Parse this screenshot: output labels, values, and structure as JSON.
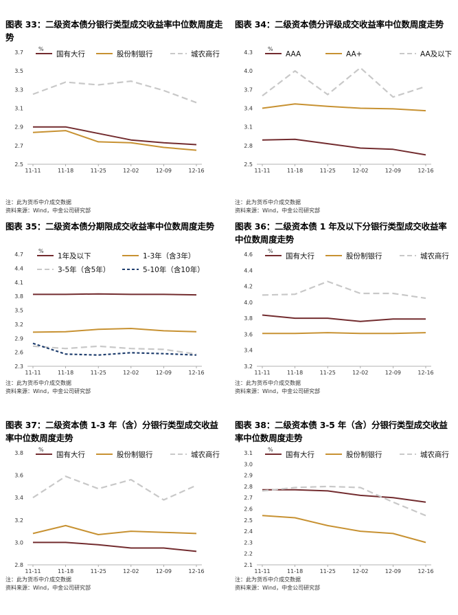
{
  "notes": {
    "note": "注：此为货币中介成交数据",
    "source": "资料来源：Wind，中金公司研究部"
  },
  "colors": {
    "dark_red": "#722b2e",
    "gold": "#c79131",
    "gray": "#c8c8c8",
    "navy": "#1f3e6e"
  },
  "chart_data": [
    {
      "type": "line",
      "title": "图表 33：二级资本债分银行类型成交收益率中位数周度走势",
      "ylabel": "%",
      "ylim": [
        2.5,
        3.7
      ],
      "yticks": [
        "2.5",
        "2.7",
        "2.9",
        "3.1",
        "3.3",
        "3.5",
        "3.7"
      ],
      "categories": [
        "11-11",
        "11-18",
        "11-25",
        "12-02",
        "12-09",
        "12-16"
      ],
      "series": [
        {
          "name": "国有大行",
          "color": "#722b2e",
          "dash": "solid",
          "values": [
            2.9,
            2.9,
            2.83,
            2.76,
            2.73,
            2.71
          ]
        },
        {
          "name": "股份制银行",
          "color": "#c79131",
          "dash": "solid",
          "values": [
            2.84,
            2.86,
            2.74,
            2.73,
            2.68,
            2.65
          ]
        },
        {
          "name": "城农商行",
          "color": "#c8c8c8",
          "dash": "dash",
          "values": [
            3.25,
            3.38,
            3.35,
            3.39,
            3.29,
            3.16
          ]
        }
      ]
    },
    {
      "type": "line",
      "title": "图表 34：二级资本债分评级成交收益率中位数周度走势",
      "ylabel": "%",
      "ylim": [
        2.5,
        4.3
      ],
      "yticks": [
        "2.5",
        "2.8",
        "3.1",
        "3.4",
        "3.7",
        "4.0",
        "4.3"
      ],
      "categories": [
        "11-11",
        "11-18",
        "11-25",
        "12-02",
        "12-09",
        "12-16"
      ],
      "series": [
        {
          "name": "AAA",
          "color": "#722b2e",
          "dash": "solid",
          "values": [
            2.89,
            2.9,
            2.83,
            2.76,
            2.74,
            2.65
          ]
        },
        {
          "name": "AA+",
          "color": "#c79131",
          "dash": "solid",
          "values": [
            3.4,
            3.47,
            3.43,
            3.4,
            3.39,
            3.36
          ]
        },
        {
          "name": "AA及以下",
          "color": "#c8c8c8",
          "dash": "dash",
          "values": [
            3.6,
            4.0,
            3.62,
            4.05,
            3.58,
            3.75
          ]
        }
      ]
    },
    {
      "type": "line",
      "title": "图表 35：二级资本债分期限成交收益率中位数周度走势",
      "ylabel": "%",
      "ylim": [
        2.3,
        4.7
      ],
      "yticks": [
        "2.3",
        "2.6",
        "2.9",
        "3.2",
        "3.5",
        "3.8",
        "4.1",
        "4.4",
        "4.7"
      ],
      "categories": [
        "11-11",
        "11-18",
        "11-25",
        "12-02",
        "12-09",
        "12-16"
      ],
      "series": [
        {
          "name": "1年及以下",
          "color": "#722b2e",
          "dash": "solid",
          "values": [
            3.84,
            3.84,
            3.85,
            3.84,
            3.84,
            3.83
          ]
        },
        {
          "name": "1-3年（含3年）",
          "color": "#c79131",
          "dash": "solid",
          "values": [
            3.03,
            3.04,
            3.09,
            3.11,
            3.06,
            3.04
          ]
        },
        {
          "name": "3-5年（含5年）",
          "color": "#c8c8c8",
          "dash": "dash",
          "values": [
            2.73,
            2.68,
            2.73,
            2.68,
            2.66,
            2.56
          ]
        },
        {
          "name": "5-10年（含10年）",
          "color": "#1f3e6e",
          "dash": "dash",
          "values": [
            2.79,
            2.56,
            2.54,
            2.59,
            2.57,
            2.54
          ]
        }
      ]
    },
    {
      "type": "line",
      "title": "图表 36：二级资本债 1 年及以下分银行类型成交收益率中位数周度走势",
      "ylabel": "%",
      "ylim": [
        3.2,
        4.6
      ],
      "yticks": [
        "3.2",
        "3.4",
        "3.6",
        "3.8",
        "4.0",
        "4.2",
        "4.4",
        "4.6"
      ],
      "categories": [
        "11-11",
        "11-18",
        "11-25",
        "12-02",
        "12-09",
        "12-16"
      ],
      "series": [
        {
          "name": "国有大行",
          "color": "#722b2e",
          "dash": "solid",
          "values": [
            3.84,
            3.8,
            3.8,
            3.76,
            3.79,
            3.79
          ]
        },
        {
          "name": "股份制银行",
          "color": "#c79131",
          "dash": "solid",
          "values": [
            3.61,
            3.61,
            3.62,
            3.61,
            3.61,
            3.62
          ]
        },
        {
          "name": "城农商行",
          "color": "#c8c8c8",
          "dash": "dash",
          "values": [
            4.09,
            4.1,
            4.26,
            4.11,
            4.11,
            4.05
          ]
        }
      ]
    },
    {
      "type": "line",
      "title": "图表 37：二级资本债 1-3 年（含）分银行类型成交收益率中位数周度走势",
      "ylabel": "%",
      "ylim": [
        2.8,
        3.8
      ],
      "yticks": [
        "2.8",
        "3.0",
        "3.2",
        "3.4",
        "3.6",
        "3.8"
      ],
      "categories": [
        "11-11",
        "11-18",
        "11-25",
        "12-02",
        "12-09",
        "12-16"
      ],
      "series": [
        {
          "name": "国有大行",
          "color": "#722b2e",
          "dash": "solid",
          "values": [
            3.0,
            3.0,
            2.98,
            2.95,
            2.95,
            2.92
          ]
        },
        {
          "name": "股份制银行",
          "color": "#c79131",
          "dash": "solid",
          "values": [
            3.08,
            3.15,
            3.07,
            3.1,
            3.09,
            3.08
          ]
        },
        {
          "name": "城农商行",
          "color": "#c8c8c8",
          "dash": "dash",
          "values": [
            3.4,
            3.59,
            3.48,
            3.56,
            3.38,
            3.51
          ]
        }
      ]
    },
    {
      "type": "line",
      "title": "图表 38：二级资本债 3-5 年（含）分银行类型成交收益率中位数周度走势",
      "ylabel": "%",
      "ylim": [
        2.1,
        3.1
      ],
      "yticks": [
        "2.1",
        "2.2",
        "2.3",
        "2.4",
        "2.5",
        "2.6",
        "2.7",
        "2.8",
        "2.9",
        "3.0",
        "3.1"
      ],
      "categories": [
        "11-11",
        "11-18",
        "11-25",
        "12-02",
        "12-09",
        "12-16"
      ],
      "series": [
        {
          "name": "国有大行",
          "color": "#722b2e",
          "dash": "solid",
          "values": [
            2.77,
            2.77,
            2.76,
            2.72,
            2.7,
            2.66
          ]
        },
        {
          "name": "股份制银行",
          "color": "#c79131",
          "dash": "solid",
          "values": [
            2.54,
            2.52,
            2.45,
            2.4,
            2.38,
            2.3
          ]
        },
        {
          "name": "城农商行",
          "color": "#c8c8c8",
          "dash": "dash",
          "values": [
            2.76,
            2.79,
            2.8,
            2.79,
            2.66,
            2.54
          ]
        }
      ]
    }
  ]
}
